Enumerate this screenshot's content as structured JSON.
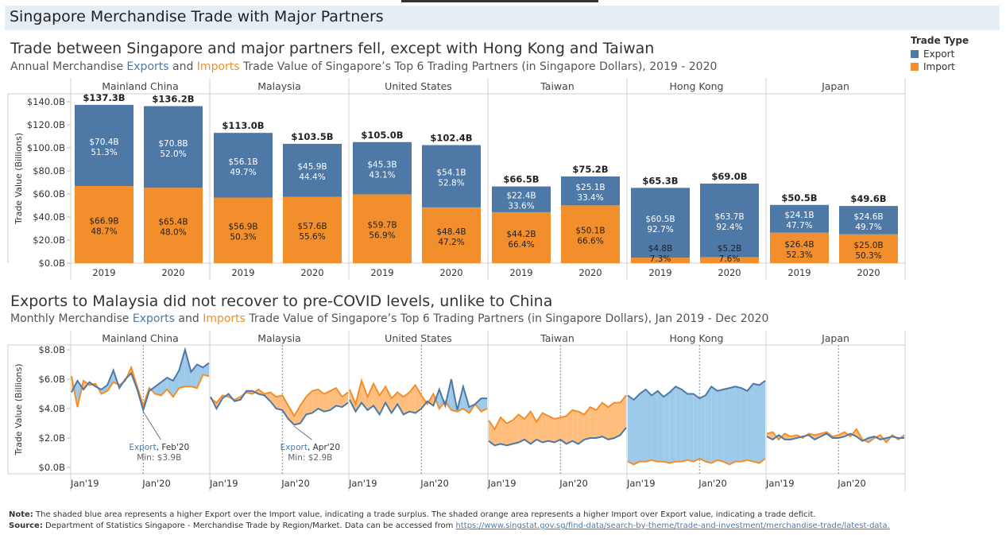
{
  "header": {
    "title": "Singapore Merchandise Trade with Major Partners"
  },
  "annual": {
    "title": "Trade between Singapore and major partners fell, except with Hong Kong and Taiwan",
    "subtitle": {
      "pre": "Annual Merchandise ",
      "exports": "Exports",
      "mid": " and ",
      "imports": "Imports",
      "post": " Trade Value of Singapore’s Top 6 Trading Partners (in Singapore Dollars), 2019 - 2020"
    }
  },
  "monthly": {
    "title": "Exports to Malaysia did not recover to pre-COVID levels, unlike to China",
    "subtitle": {
      "pre": "Monthly Merchandise ",
      "exports": "Exports",
      "mid": " and ",
      "imports": "Imports",
      "post": " Trade Value of Singapore’s Top 6 Trading Partners (in Singapore Dollars), Jan 2019 - Dec 2020"
    }
  },
  "legend": {
    "title": "Trade Type",
    "items": [
      {
        "label": "Export",
        "color": "#4e79a7"
      },
      {
        "label": "Import",
        "color": "#f28e2b"
      }
    ]
  },
  "colors": {
    "export": "#4e79a7",
    "import": "#f28e2b",
    "surplus_fill": "#9ecae9",
    "deficit_fill": "#ffbe7d"
  },
  "chart_data": [
    {
      "type": "bar",
      "stacked": true,
      "ylabel": "Trade Value (Billions)",
      "ylim": [
        0,
        140
      ],
      "yticks": [
        "$0.0B",
        "$20.0B",
        "$40.0B",
        "$60.0B",
        "$80.0B",
        "$100.0B",
        "$120.0B",
        "$140.0B"
      ],
      "panels": [
        {
          "partner": "Mainland China",
          "bars": [
            {
              "year": "2019",
              "total": 137.3,
              "total_label": "$137.3B",
              "export": 70.4,
              "export_label": "$70.4B",
              "export_pct": "51.3%",
              "import": 66.9,
              "import_label": "$66.9B",
              "import_pct": "48.7%"
            },
            {
              "year": "2020",
              "total": 136.2,
              "total_label": "$136.2B",
              "export": 70.8,
              "export_label": "$70.8B",
              "export_pct": "52.0%",
              "import": 65.4,
              "import_label": "$65.4B",
              "import_pct": "48.0%"
            }
          ]
        },
        {
          "partner": "Malaysia",
          "bars": [
            {
              "year": "2019",
              "total": 113.0,
              "total_label": "$113.0B",
              "export": 56.1,
              "export_label": "$56.1B",
              "export_pct": "49.7%",
              "import": 56.9,
              "import_label": "$56.9B",
              "import_pct": "50.3%"
            },
            {
              "year": "2020",
              "total": 103.5,
              "total_label": "$103.5B",
              "export": 45.9,
              "export_label": "$45.9B",
              "export_pct": "44.4%",
              "import": 57.6,
              "import_label": "$57.6B",
              "import_pct": "55.6%"
            }
          ]
        },
        {
          "partner": "United States",
          "bars": [
            {
              "year": "2019",
              "total": 105.0,
              "total_label": "$105.0B",
              "export": 45.3,
              "export_label": "$45.3B",
              "export_pct": "43.1%",
              "import": 59.7,
              "import_label": "$59.7B",
              "import_pct": "56.9%"
            },
            {
              "year": "2020",
              "total": 102.4,
              "total_label": "$102.4B",
              "export": 54.1,
              "export_label": "$54.1B",
              "export_pct": "52.8%",
              "import": 48.4,
              "import_label": "$48.4B",
              "import_pct": "47.2%"
            }
          ]
        },
        {
          "partner": "Taiwan",
          "bars": [
            {
              "year": "2019",
              "total": 66.5,
              "total_label": "$66.5B",
              "export": 22.4,
              "export_label": "$22.4B",
              "export_pct": "33.6%",
              "import": 44.2,
              "import_label": "$44.2B",
              "import_pct": "66.4%"
            },
            {
              "year": "2020",
              "total": 75.2,
              "total_label": "$75.2B",
              "export": 25.1,
              "export_label": "$25.1B",
              "export_pct": "33.4%",
              "import": 50.1,
              "import_label": "$50.1B",
              "import_pct": "66.6%"
            }
          ]
        },
        {
          "partner": "Hong Kong",
          "bars": [
            {
              "year": "2019",
              "total": 65.3,
              "total_label": "$65.3B",
              "export": 60.5,
              "export_label": "$60.5B",
              "export_pct": "92.7%",
              "import": 4.8,
              "import_label": "$4.8B",
              "import_pct": "7.3%"
            },
            {
              "year": "2020",
              "total": 69.0,
              "total_label": "$69.0B",
              "export": 63.7,
              "export_label": "$63.7B",
              "export_pct": "92.4%",
              "import": 5.2,
              "import_label": "$5.2B",
              "import_pct": "7.6%"
            }
          ]
        },
        {
          "partner": "Japan",
          "bars": [
            {
              "year": "2019",
              "total": 50.5,
              "total_label": "$50.5B",
              "export": 24.1,
              "export_label": "$24.1B",
              "export_pct": "47.7%",
              "import": 26.4,
              "import_label": "$26.4B",
              "import_pct": "52.3%"
            },
            {
              "year": "2020",
              "total": 49.6,
              "total_label": "$49.6B",
              "export": 24.6,
              "export_label": "$24.6B",
              "export_pct": "49.7%",
              "import": 25.0,
              "import_label": "$25.0B",
              "import_pct": "50.3%"
            }
          ]
        }
      ]
    },
    {
      "type": "area",
      "ylabel": "Trade Value (Billions)",
      "ylim": [
        0,
        8
      ],
      "yticks": [
        "$0.0B",
        "$2.0B",
        "$4.0B",
        "$6.0B",
        "$8.0B"
      ],
      "xticks": [
        "Jan'19",
        "Jan'20"
      ],
      "x_range": [
        "Jan 2019",
        "Dec 2020"
      ],
      "panels": [
        {
          "partner": "Mainland China",
          "export": [
            5.1,
            5.9,
            5.3,
            5.8,
            5.5,
            5.3,
            5.6,
            6.6,
            5.4,
            6.0,
            6.4,
            5.3,
            3.9,
            5.2,
            5.5,
            5.8,
            6.1,
            5.9,
            6.6,
            8.0,
            6.5,
            7.0,
            6.8,
            7.1
          ],
          "import": [
            6.2,
            4.1,
            5.9,
            5.6,
            5.7,
            5.0,
            5.2,
            5.8,
            5.6,
            5.9,
            6.8,
            5.5,
            4.2,
            5.4,
            5.0,
            4.9,
            5.3,
            4.8,
            5.4,
            5.5,
            5.5,
            5.4,
            6.3,
            6.2
          ],
          "annotation": {
            "series": "Export",
            "month": "Feb'20",
            "value_label": "Min: $3.9B"
          }
        },
        {
          "partner": "Malaysia",
          "export": [
            4.8,
            4.0,
            4.7,
            5.0,
            4.5,
            4.6,
            5.2,
            5.2,
            5.0,
            4.9,
            4.5,
            4.0,
            3.9,
            3.3,
            2.9,
            3.0,
            3.6,
            3.7,
            4.0,
            3.8,
            3.9,
            4.2,
            4.1,
            4.4
          ],
          "import": [
            4.7,
            4.4,
            4.9,
            4.8,
            4.6,
            4.8,
            5.1,
            5.0,
            5.3,
            5.0,
            5.1,
            4.8,
            4.9,
            4.2,
            3.5,
            4.2,
            4.8,
            5.2,
            5.3,
            5.0,
            5.2,
            5.4,
            4.8,
            5.1
          ],
          "annotation": {
            "series": "Export",
            "month": "Apr'20",
            "value_label": "Min: $2.9B"
          }
        },
        {
          "partner": "United States",
          "export": [
            4.6,
            3.8,
            4.4,
            3.9,
            4.2,
            3.6,
            4.4,
            3.7,
            4.3,
            3.6,
            3.8,
            3.7,
            4.0,
            4.5,
            4.2,
            5.3,
            4.2,
            6.0,
            3.9,
            5.5,
            4.1,
            4.3,
            4.7,
            4.7
          ],
          "import": [
            5.3,
            4.3,
            5.9,
            4.8,
            5.7,
            4.9,
            5.5,
            4.7,
            5.1,
            4.8,
            5.1,
            5.6,
            4.9,
            4.3,
            5.0,
            4.0,
            4.5,
            3.9,
            3.8,
            4.0,
            3.7,
            4.3,
            3.8,
            4.0
          ]
        },
        {
          "partner": "Taiwan",
          "export": [
            1.8,
            1.5,
            1.6,
            1.5,
            1.6,
            1.7,
            1.9,
            1.6,
            1.9,
            1.7,
            1.8,
            1.7,
            1.9,
            1.6,
            1.8,
            1.6,
            1.9,
            2.0,
            2.0,
            2.1,
            1.9,
            2.0,
            2.2,
            2.7
          ],
          "import": [
            3.2,
            2.6,
            3.4,
            3.0,
            3.2,
            3.6,
            3.3,
            3.8,
            3.1,
            3.7,
            3.5,
            3.3,
            3.4,
            3.5,
            3.9,
            3.8,
            3.6,
            4.1,
            3.9,
            4.4,
            4.1,
            4.4,
            4.4,
            4.9
          ]
        },
        {
          "partner": "Hong Kong",
          "export": [
            4.9,
            4.6,
            5.0,
            5.3,
            4.9,
            5.2,
            4.8,
            5.1,
            5.5,
            5.3,
            5.0,
            5.0,
            4.7,
            4.9,
            5.5,
            5.2,
            5.3,
            5.4,
            5.5,
            5.4,
            5.2,
            5.7,
            5.6,
            5.9
          ],
          "import": [
            0.4,
            0.2,
            0.4,
            0.4,
            0.5,
            0.4,
            0.4,
            0.3,
            0.4,
            0.4,
            0.5,
            0.4,
            0.6,
            0.4,
            0.3,
            0.5,
            0.4,
            0.2,
            0.4,
            0.4,
            0.5,
            0.4,
            0.3,
            0.6
          ]
        },
        {
          "partner": "Japan",
          "export": [
            2.1,
            1.9,
            2.2,
            1.9,
            1.9,
            2.0,
            2.1,
            2.2,
            1.9,
            2.1,
            2.3,
            2.0,
            2.0,
            2.1,
            2.3,
            2.1,
            1.8,
            2.0,
            2.1,
            1.9,
            2.0,
            2.1,
            2.0,
            2.0
          ],
          "import": [
            2.3,
            2.4,
            1.9,
            2.3,
            2.1,
            2.2,
            2.0,
            2.3,
            2.2,
            2.3,
            2.4,
            2.1,
            2.2,
            2.4,
            2.1,
            2.6,
            1.9,
            1.7,
            2.0,
            2.2,
            1.7,
            2.2,
            1.9,
            2.2
          ]
        }
      ]
    }
  ],
  "footer": {
    "note_label": "Note:",
    "note_text": " The shaded blue area represents a higher Export over the Import value, indicating a trade surplus. The shaded orange area represents a higher Import over Export value, indicating a trade deficit.",
    "source_label": "Source:",
    "source_text": " Department of Statistics Singapore - Merchandise Trade by Region/Market. Data can be accessed from ",
    "source_link": "https://www.singstat.gov.sg/find-data/search-by-theme/trade-and-investment/merchandise-trade/latest-data."
  }
}
